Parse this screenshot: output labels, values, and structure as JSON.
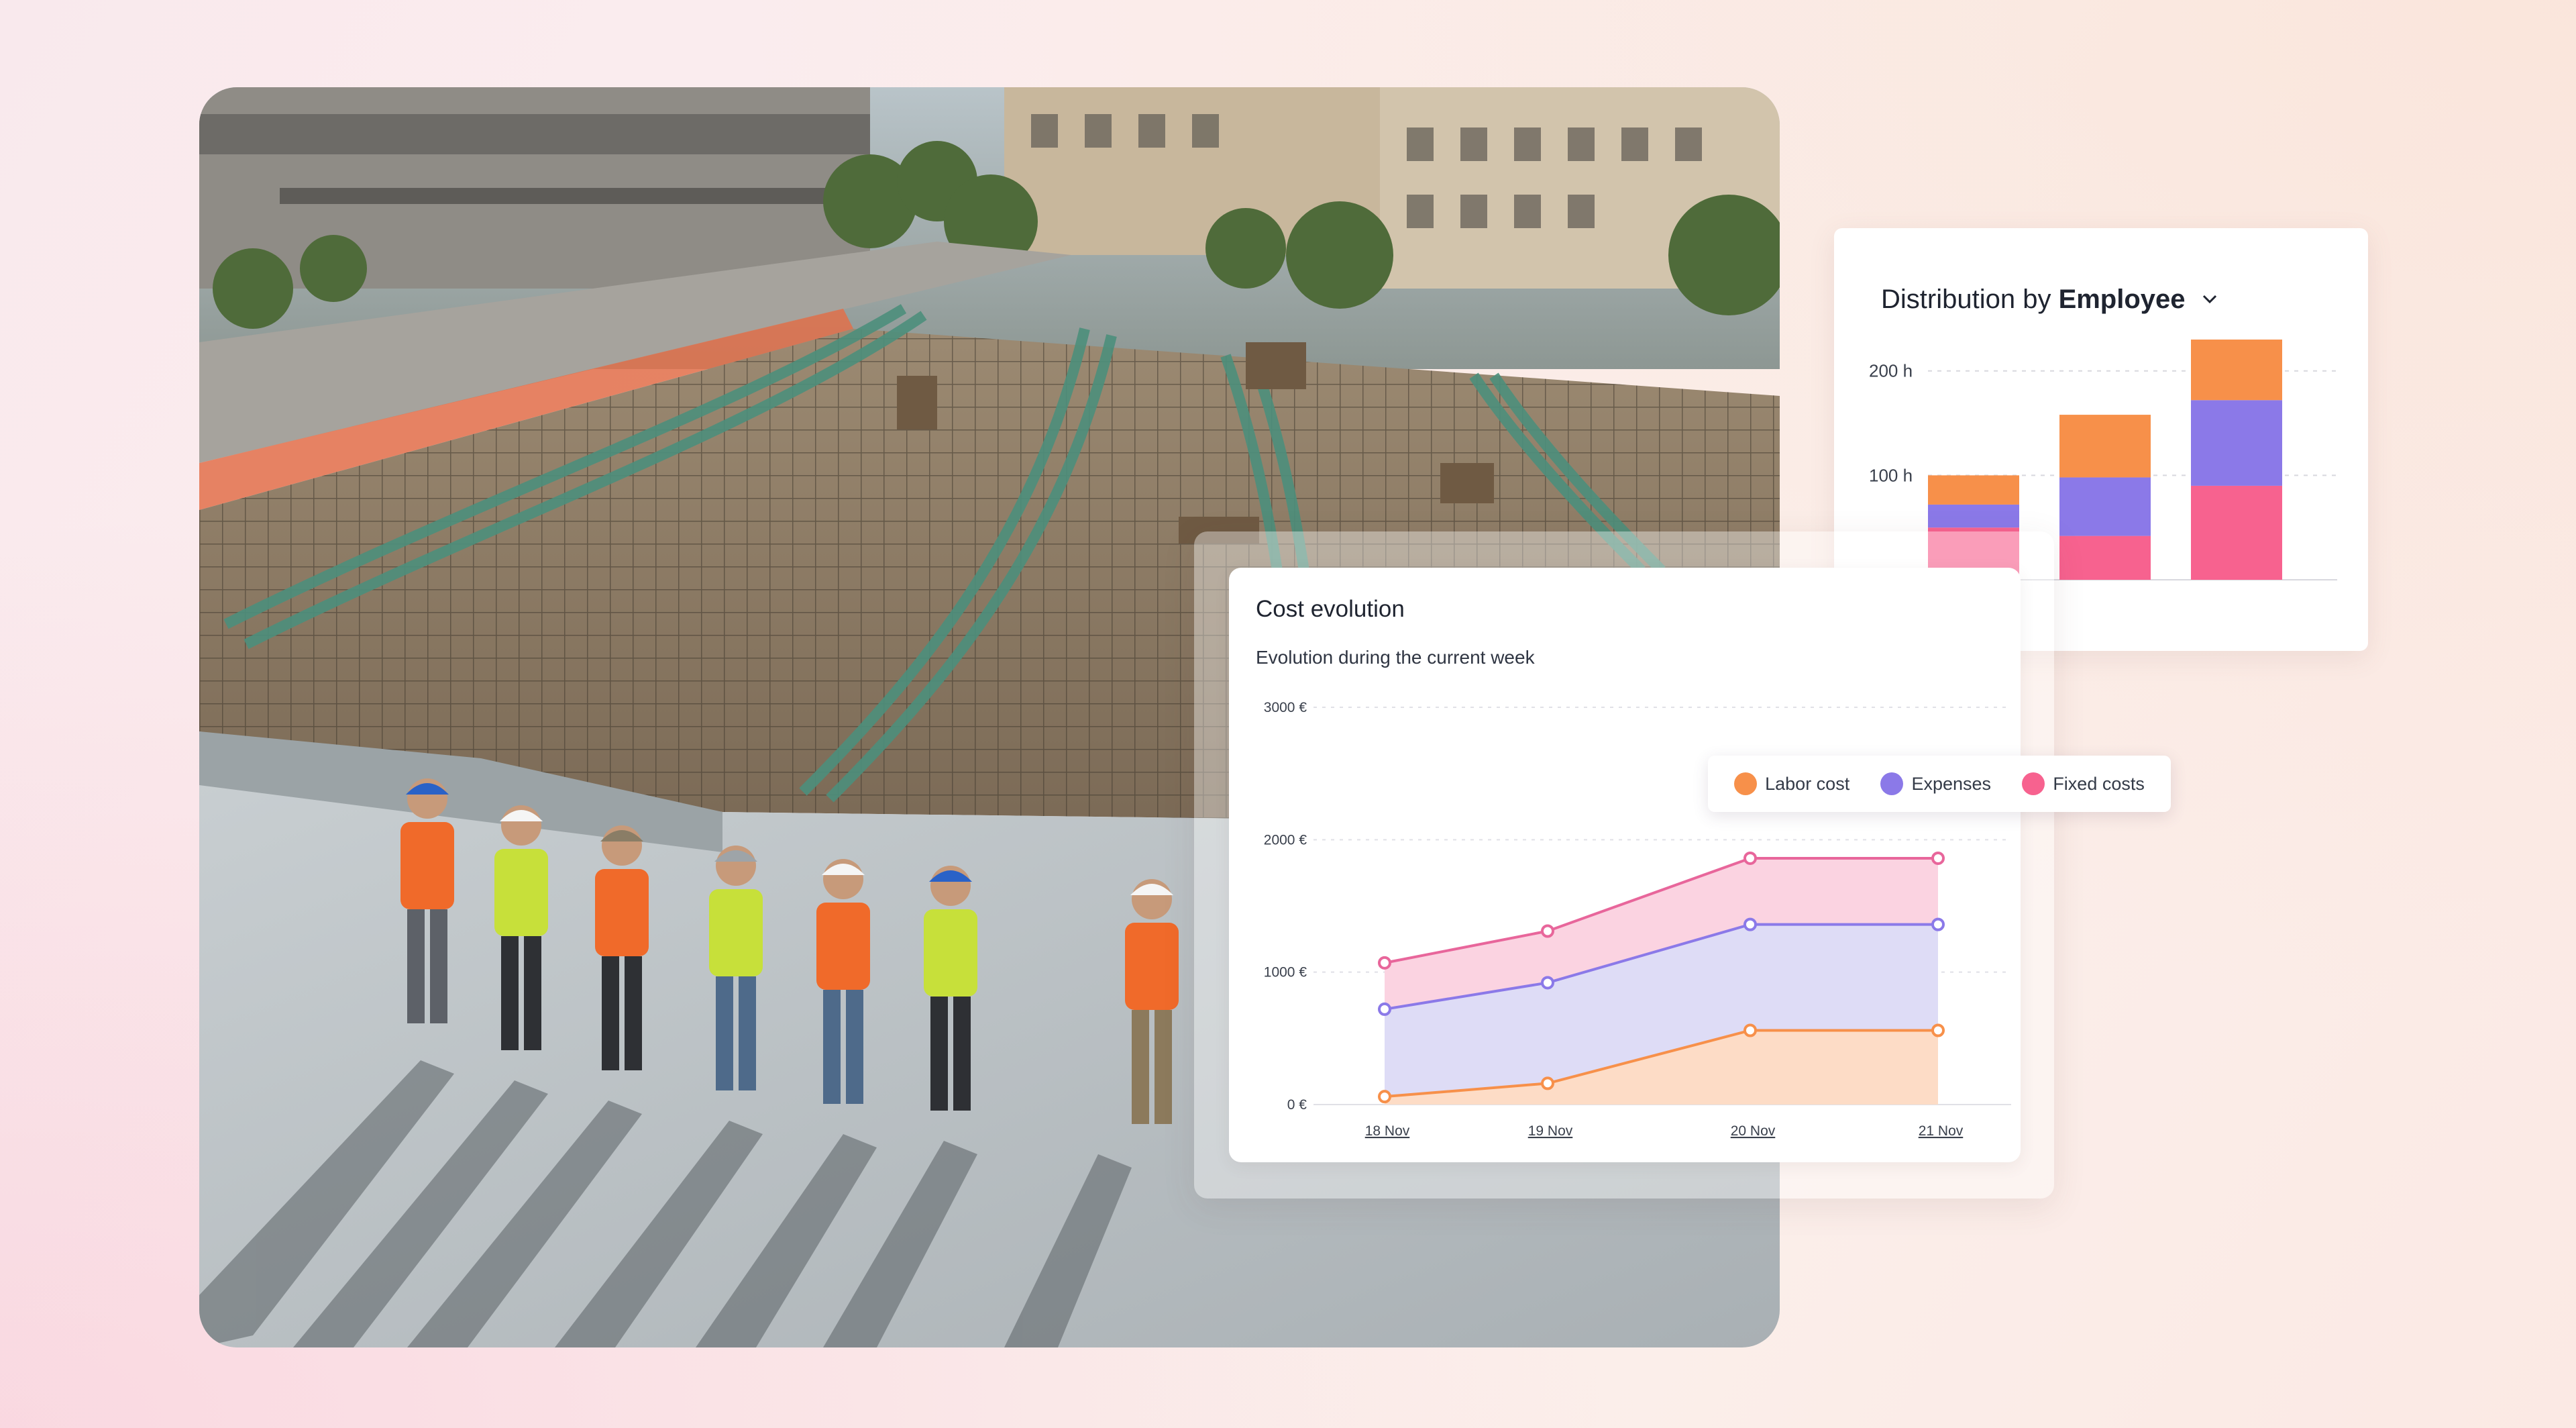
{
  "distribution_card": {
    "title_prefix": "Distribution by",
    "title_emphasis": "Employee",
    "chart_data": {
      "type": "bar",
      "stacked": true,
      "y_tick_labels": [
        "200 h",
        "100 h"
      ],
      "ylim": [
        0,
        230
      ],
      "categories": [
        "",
        "",
        ""
      ],
      "series": [
        {
          "values": [
            50,
            42,
            90
          ],
          "color": "#f7628f"
        },
        {
          "values": [
            22,
            56,
            82
          ],
          "color": "#8b79e8"
        },
        {
          "values": [
            28,
            60,
            58
          ],
          "color": "#f7904a"
        }
      ]
    }
  },
  "cost_card": {
    "title": "Cost evolution",
    "subtitle": "Evolution during the current week",
    "legend": {
      "items": [
        {
          "label": "Labor cost",
          "color": "#f7904a"
        },
        {
          "label": "Expenses",
          "color": "#8b79e8"
        },
        {
          "label": "Fixed costs",
          "color": "#f7628f"
        }
      ]
    },
    "chart_data": {
      "type": "area",
      "stacked": true,
      "x": [
        "18 Nov",
        "19 Nov",
        "20 Nov",
        "21 Nov"
      ],
      "y_tick_labels": [
        "3000 €",
        "2000 €",
        "1000 €",
        "0 €"
      ],
      "ylim": [
        0,
        3000
      ],
      "grid": true,
      "series": [
        {
          "name": "Labor cost",
          "values": [
            60,
            160,
            560,
            560
          ],
          "color": "#f7904a",
          "fill": "#fddcc6"
        },
        {
          "name": "Expenses",
          "values": [
            720,
            920,
            1360,
            1360
          ],
          "color": "#8b79e8",
          "fill": "#dedcf6"
        },
        {
          "name": "Fixed costs",
          "values": [
            1070,
            1310,
            1860,
            1860
          ],
          "color": "#e8669b",
          "fill": "#fbd3e1"
        }
      ]
    }
  }
}
